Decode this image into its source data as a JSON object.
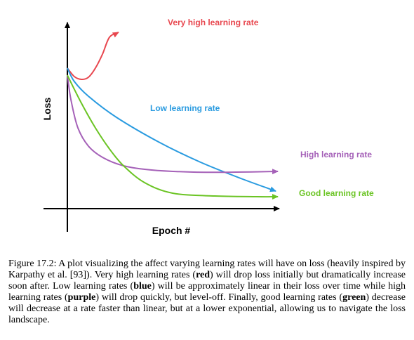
{
  "chart_data": {
    "type": "line",
    "title": "",
    "xlabel": "Epoch #",
    "ylabel": "Loss",
    "grid": false,
    "legend": "inline labels at line ends",
    "x_ticks": "none",
    "y_ticks": "none",
    "xlim": [
      0,
      1
    ],
    "ylim": [
      0,
      1
    ],
    "series": [
      {
        "name": "Very high learning rate",
        "color": "#e8474f",
        "values": [
          {
            "x": 0.0,
            "y": 0.8
          },
          {
            "x": 0.033,
            "y": 0.752
          },
          {
            "x": 0.067,
            "y": 0.736
          },
          {
            "x": 0.1,
            "y": 0.748
          },
          {
            "x": 0.133,
            "y": 0.8
          },
          {
            "x": 0.167,
            "y": 0.88
          },
          {
            "x": 0.2,
            "y": 0.976
          },
          {
            "x": 0.243,
            "y": 1.004
          }
        ]
      },
      {
        "name": "Low learning rate",
        "color": "#2a9be0",
        "values": [
          {
            "x": 0.0,
            "y": 0.8
          },
          {
            "x": 0.033,
            "y": 0.724
          },
          {
            "x": 0.1,
            "y": 0.64
          },
          {
            "x": 0.233,
            "y": 0.52
          },
          {
            "x": 0.433,
            "y": 0.38
          },
          {
            "x": 0.633,
            "y": 0.264
          },
          {
            "x": 0.833,
            "y": 0.168
          },
          {
            "x": 0.99,
            "y": 0.1
          }
        ]
      },
      {
        "name": "High learning rate",
        "color": "#a561b8",
        "values": [
          {
            "x": 0.0,
            "y": 0.76
          },
          {
            "x": 0.017,
            "y": 0.62
          },
          {
            "x": 0.05,
            "y": 0.46
          },
          {
            "x": 0.1,
            "y": 0.356
          },
          {
            "x": 0.167,
            "y": 0.292
          },
          {
            "x": 0.267,
            "y": 0.244
          },
          {
            "x": 0.4,
            "y": 0.22
          },
          {
            "x": 0.6,
            "y": 0.208
          },
          {
            "x": 0.8,
            "y": 0.208
          },
          {
            "x": 1.0,
            "y": 0.212
          }
        ]
      },
      {
        "name": "Good learning rate",
        "color": "#6bc424",
        "values": [
          {
            "x": 0.0,
            "y": 0.76
          },
          {
            "x": 0.067,
            "y": 0.6
          },
          {
            "x": 0.133,
            "y": 0.46
          },
          {
            "x": 0.2,
            "y": 0.34
          },
          {
            "x": 0.267,
            "y": 0.244
          },
          {
            "x": 0.367,
            "y": 0.148
          },
          {
            "x": 0.5,
            "y": 0.088
          },
          {
            "x": 0.7,
            "y": 0.072
          },
          {
            "x": 0.9,
            "y": 0.068
          },
          {
            "x": 1.0,
            "y": 0.068
          }
        ]
      }
    ]
  },
  "caption": {
    "prefix": "Figure 17.2: A plot visualizing the affect varying learning rates will have on loss (heavily inspired by Karpathy et al. [93]). Very high learning rates (",
    "red": "red",
    "part2": ") will drop loss initially but dramatically increase soon after. Low learning rates (",
    "blue": "blue",
    "part3": ") will be approximately linear in their loss over time while high learning rates (",
    "purple": "purple",
    "part4": ") will drop quickly, but level-off. Finally, good learning rates (",
    "green": "green",
    "part5": ") decrease will decrease at a rate faster than linear, but at a lower exponential, allowing us to navigate the loss landscape."
  }
}
